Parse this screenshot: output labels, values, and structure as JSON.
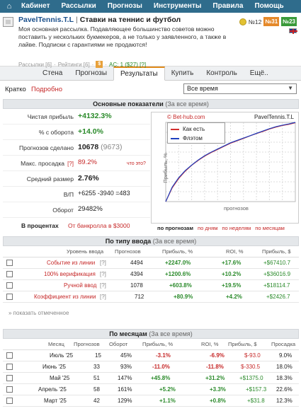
{
  "nav": {
    "home_icon": "home-icon",
    "items": [
      "Кабинет",
      "Рассылки",
      "Прогнозы",
      "Инструменты",
      "Правила",
      "Помощь"
    ]
  },
  "profile": {
    "name": "PavelTennis.T.L",
    "separator": "|",
    "subtitle": "Ставки на теннис и футбол",
    "description": "Моя основная рассылка. Подавляющее большинство советов можно поставить у нескольких букмекеров, а не только у заявленного, а также в лайве. Подписки с гарантиями не продаются!",
    "meta": {
      "mailings": "Рассылки [6]",
      "ratings": "Рейтинги [6]",
      "dollar": "$",
      "ac": "AC: 1 ($27) [?]"
    },
    "rank": "№12",
    "badge1": "№31",
    "badge2": "№23"
  },
  "tabs": [
    "Стена",
    "Прогнозы",
    "Результаты",
    "Купить",
    "Контроль",
    "Ещё.."
  ],
  "filters": {
    "brief": "Кратко",
    "detail": "Подробно",
    "period": "Все время"
  },
  "main": {
    "head_title": "Основные показатели",
    "head_note": "(За все время)",
    "stats": [
      {
        "label": "Чистая прибыль",
        "value": "+4132.3%"
      },
      {
        "label": "% с оборота",
        "value": "+14.0%"
      },
      {
        "label": "Прогнозов сделано",
        "value": "10678",
        "extra": "(9673)"
      },
      {
        "label": "Макс. просадка",
        "q": "[?]",
        "value": "89.2%",
        "note": "что это?"
      },
      {
        "label": "Средний размер",
        "value": "2.76%"
      },
      {
        "label": "В/П",
        "value": "+6255 -3940 =483"
      },
      {
        "label": "Оборот",
        "value": "29482%"
      }
    ],
    "pct_label": "В процентах",
    "pct_link": "От банкролла в $3000",
    "chart": {
      "brand": "© Bet-hub.com",
      "name": "PavelTennis.T.L",
      "legend_actual": "Как есть",
      "legend_flat": "Флэтом",
      "xlabel": "прогнозов",
      "ylabel": "Прибыль, %",
      "links": [
        "по прогнозам",
        "по дням",
        "по неделям",
        "по месяцам"
      ]
    }
  },
  "colors": {
    "nav": "#2f6c8c",
    "actual_line": "#d32f2f",
    "flat_line": "#1e3fbf"
  },
  "chart_data": {
    "type": "line",
    "series": [
      {
        "name": "Как есть",
        "color": "#d32f2f",
        "values": [
          0,
          70,
          118,
          155,
          185,
          210,
          232,
          250,
          266,
          282,
          298,
          310,
          322,
          335,
          347,
          358,
          370,
          380,
          388,
          394,
          402
        ]
      },
      {
        "name": "Флэтом",
        "color": "#1e3fbf",
        "values": [
          0,
          74,
          122,
          158,
          186,
          212,
          234,
          252,
          268,
          284,
          300,
          312,
          324,
          336,
          348,
          360,
          372,
          382,
          390,
          396,
          404
        ]
      }
    ],
    "xlabel": "прогнозов",
    "ylabel": "Прибыль, %",
    "grid": true,
    "legend": "top-left"
  },
  "by_type": {
    "head_title": "По типу ввода",
    "head_note": "(За все время)",
    "columns": [
      "Уровень ввода",
      "Прогнозов",
      "Прибыль, %",
      "ROI, %",
      "Прибыль, $"
    ],
    "rows": [
      {
        "name": "Событие из линии",
        "q": "[?]",
        "count": "4494",
        "profit": "+2247.0%",
        "roi": "+17.6%",
        "usd": "+$67410.7"
      },
      {
        "name": "100% верификация",
        "q": "[?]",
        "count": "4394",
        "profit": "+1200.6%",
        "roi": "+10.2%",
        "usd": "+$36016.9"
      },
      {
        "name": "Ручной ввод",
        "q": "[?]",
        "count": "1078",
        "profit": "+603.8%",
        "roi": "+19.5%",
        "usd": "+$18114.7"
      },
      {
        "name": "Коэффициент из линии",
        "q": "[?]",
        "count": "712",
        "profit": "+80.9%",
        "roi": "+4.2%",
        "usd": "+$2426.7"
      }
    ],
    "show_marked": "» показать отмеченное"
  },
  "by_month": {
    "head_title": "По месяцам",
    "head_note": "(За все время)",
    "columns": [
      "Месяц",
      "Прогнозов",
      "Оборот",
      "Прибыль, %",
      "ROI, %",
      "Прибыль, $",
      "Просадка"
    ],
    "rows": [
      {
        "month": "Июль '25",
        "count": "15",
        "turnover": "45%",
        "profit": "-3.1%",
        "roi": "-6.9%",
        "usd": "$-93.0",
        "dd": "9.0%"
      },
      {
        "month": "Июнь '25",
        "count": "33",
        "turnover": "93%",
        "profit": "-11.0%",
        "roi": "-11.8%",
        "usd": "$-330.5",
        "dd": "18.0%"
      },
      {
        "month": "Май '25",
        "count": "51",
        "turnover": "147%",
        "profit": "+45.8%",
        "roi": "+31.2%",
        "usd": "+$1375.0",
        "dd": "18.3%"
      },
      {
        "month": "Апрель '25",
        "count": "58",
        "turnover": "161%",
        "profit": "+5.2%",
        "roi": "+3.3%",
        "usd": "+$157.3",
        "dd": "22.6%"
      },
      {
        "month": "Март '25",
        "count": "42",
        "turnover": "129%",
        "profit": "+1.1%",
        "roi": "+0.8%",
        "usd": "+$31.8",
        "dd": "12.3%"
      }
    ]
  }
}
